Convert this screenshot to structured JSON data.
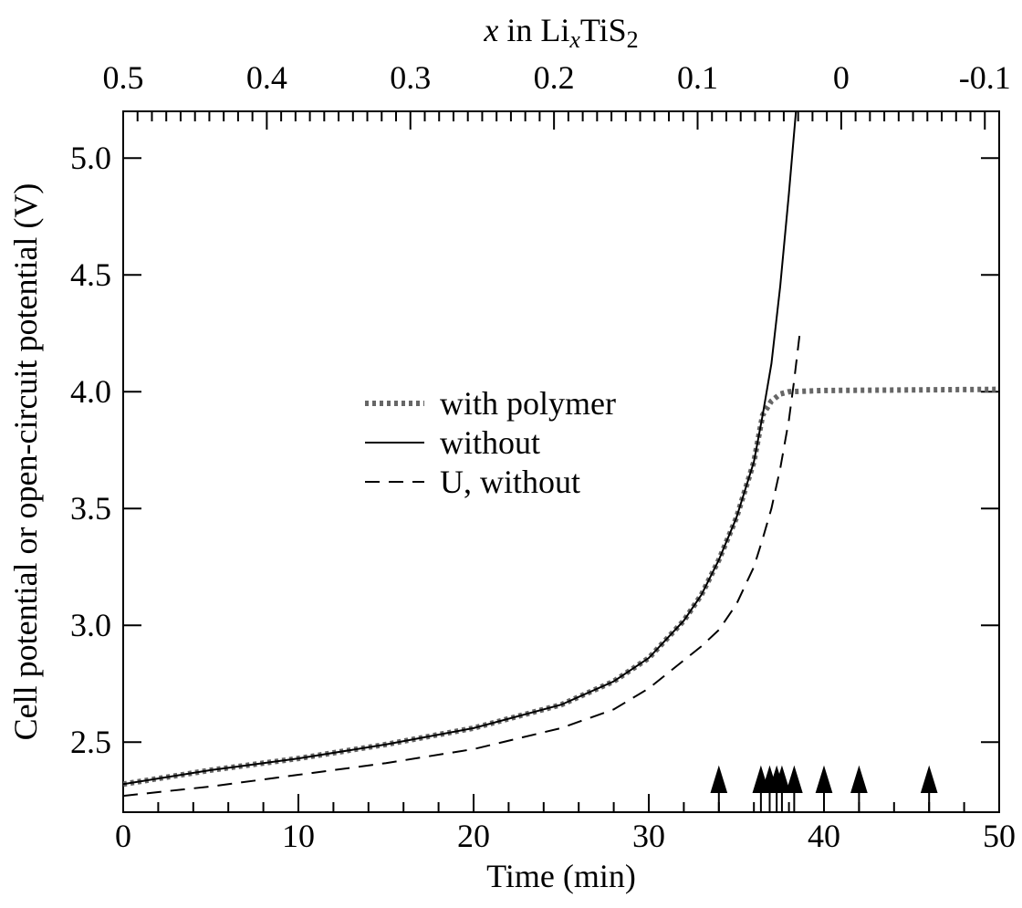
{
  "chart_data": {
    "type": "line",
    "xlabel": "Time (min)",
    "ylabel": "Cell potential or open-circuit potential (V)",
    "x2label": [
      {
        "text": "x",
        "style": "italic"
      },
      {
        "text": " in Li"
      },
      {
        "text": "x",
        "style": "italic sub"
      },
      {
        "text": "TiS"
      },
      {
        "text": "2",
        "style": "sub"
      }
    ],
    "xlim": [
      0,
      50
    ],
    "xticks": [
      0,
      10,
      20,
      30,
      40,
      50
    ],
    "xminorticks": [
      2,
      4,
      6,
      8,
      12,
      14,
      16,
      18,
      22,
      24,
      26,
      28,
      32,
      34,
      36,
      38,
      42,
      44,
      46,
      48
    ],
    "x2lim": [
      0.5,
      -0.11
    ],
    "x2ticks": [
      0.5,
      0.4,
      0.3,
      0.2,
      0.1,
      0,
      -0.1
    ],
    "x2minorticks": [
      0.49,
      0.48,
      0.47,
      0.46,
      0.45,
      0.44,
      0.43,
      0.42,
      0.41,
      0.39,
      0.38,
      0.37,
      0.36,
      0.35,
      0.34,
      0.33,
      0.32,
      0.31,
      0.29,
      0.28,
      0.27,
      0.26,
      0.25,
      0.24,
      0.23,
      0.22,
      0.21,
      0.19,
      0.18,
      0.17,
      0.16,
      0.15,
      0.14,
      0.13,
      0.12,
      0.11,
      0.09,
      0.08,
      0.07,
      0.06,
      0.05,
      0.04,
      0.03,
      0.02,
      0.01,
      -0.01,
      -0.02,
      -0.03,
      -0.04,
      -0.05,
      -0.06,
      -0.07,
      -0.08,
      -0.09,
      -0.11
    ],
    "ylim": [
      2.2,
      5.2
    ],
    "yticks": [
      2.5,
      {
        "value": 3,
        "label": "3.0"
      },
      3.5,
      {
        "value": 4,
        "label": "4.0"
      },
      4.5,
      {
        "value": 5,
        "label": "5.0"
      }
    ],
    "grid": false,
    "series": [
      {
        "name": "with polymer",
        "color": "#666666",
        "dash": "dotted",
        "x": [
          0,
          5,
          10,
          15,
          20,
          25,
          28,
          30,
          32,
          33,
          34,
          35,
          36,
          36.5,
          37,
          37.5,
          38,
          40,
          50
        ],
        "values": [
          2.32,
          2.38,
          2.43,
          2.49,
          2.56,
          2.66,
          2.76,
          2.86,
          3.02,
          3.13,
          3.28,
          3.46,
          3.7,
          3.9,
          3.96,
          3.99,
          4.0,
          4.005,
          4.01
        ]
      },
      {
        "name": "without",
        "color": "#000000",
        "dash": "solid",
        "x": [
          0,
          5,
          10,
          15,
          20,
          25,
          28,
          30,
          32,
          33,
          34,
          35,
          36,
          36.5,
          37,
          37.5,
          38,
          38.4
        ],
        "values": [
          2.32,
          2.38,
          2.43,
          2.49,
          2.56,
          2.66,
          2.76,
          2.86,
          3.02,
          3.13,
          3.28,
          3.46,
          3.7,
          3.9,
          4.12,
          4.45,
          4.85,
          5.2
        ]
      },
      {
        "name": "U, without",
        "color": "#000000",
        "dash": "dashed",
        "x": [
          0,
          5,
          10,
          15,
          20,
          25,
          28,
          30,
          31,
          32,
          33,
          34,
          35,
          36,
          36.5,
          37,
          37.5,
          38,
          38.3,
          38.65
        ],
        "values": [
          2.27,
          2.31,
          2.36,
          2.41,
          2.47,
          2.56,
          2.64,
          2.73,
          2.79,
          2.85,
          2.91,
          2.98,
          3.09,
          3.25,
          3.37,
          3.5,
          3.67,
          3.88,
          4.05,
          4.27
        ]
      }
    ],
    "arrows_x": [
      34,
      36.4,
      36.9,
      37.3,
      37.6,
      38.3,
      40,
      42,
      46
    ]
  }
}
